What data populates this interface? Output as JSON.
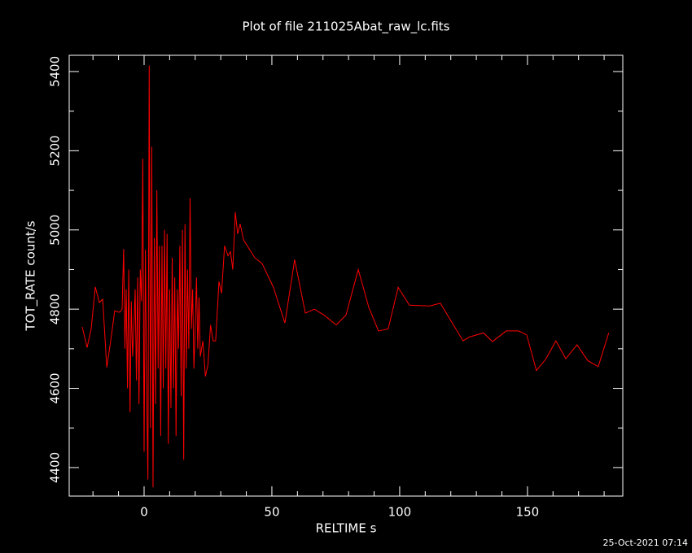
{
  "chart_data": {
    "type": "line",
    "title": "Plot of file 211025Abat_raw_lc.fits",
    "x_label": "RELTIME  s",
    "y_label": "TOT_RATE  count/s",
    "footer": "25-Oct-2021 07:14",
    "color": "#ff0000",
    "x": [
      -24.2,
      -22.3,
      -20.7,
      -19.1,
      -17.5,
      -16.2,
      -14.6,
      -13.1,
      -11.5,
      -9.6,
      -8.6,
      -8.0,
      -7.5,
      -7,
      -6.5,
      -6,
      -5.5,
      -5,
      -4.5,
      -4,
      -3.5,
      -3,
      -2.5,
      -2,
      -1.5,
      -1,
      -0.5,
      0,
      0.5,
      1,
      1.5,
      2,
      2.5,
      3,
      3.5,
      4,
      4.5,
      5,
      5.5,
      6,
      6.5,
      7,
      7.5,
      8,
      8.5,
      9,
      9.5,
      10,
      10.5,
      11,
      11.5,
      12,
      12.5,
      13,
      13.5,
      14,
      14.5,
      15,
      15.5,
      16,
      16.5,
      17,
      17.5,
      18,
      18.5,
      19,
      19.5,
      20,
      20.5,
      21,
      21.5,
      22,
      23,
      24,
      25,
      26,
      27,
      28,
      29.3,
      30.3,
      31.5,
      32.8,
      33.8,
      34.7,
      35.7,
      36.6,
      37.6,
      38.9,
      43.3,
      46.2,
      50.6,
      55.1,
      58.9,
      63.1,
      66.6,
      70.4,
      75.2,
      79,
      83.8,
      87.9,
      91.7,
      95.5,
      99.4,
      103.8,
      111.8,
      115.9,
      124.8,
      127.4,
      132.8,
      136.3,
      141.7,
      146.5,
      149.7,
      153.5,
      157.3,
      161.1,
      165,
      169.4,
      173.6,
      177.7,
      181.8
    ],
    "values": [
      4755,
      4703,
      4750,
      4856,
      4817,
      4825,
      4653,
      4718,
      4796,
      4792,
      4800,
      4952,
      4700,
      4850,
      4600,
      4900,
      4540,
      4820,
      4680,
      4750,
      4850,
      4620,
      4880,
      4560,
      4900,
      4820,
      5180,
      4440,
      4950,
      4600,
      4370,
      5415,
      4500,
      5210,
      4350,
      4980,
      4560,
      5100,
      4650,
      4960,
      4480,
      4960,
      4600,
      5000,
      4650,
      4990,
      4460,
      4850,
      4550,
      4930,
      4600,
      4880,
      4480,
      4850,
      4700,
      4960,
      4580,
      5000,
      4420,
      5015,
      4650,
      4900,
      4700,
      5080,
      4750,
      4850,
      4650,
      4750,
      4880,
      4700,
      4830,
      4680,
      4720,
      4630,
      4660,
      4760,
      4720,
      4720,
      4870,
      4840,
      4960,
      4935,
      4945,
      4900,
      5045,
      4990,
      5015,
      4975,
      4930,
      4915,
      4855,
      4765,
      4925,
      4790,
      4800,
      4785,
      4760,
      4785,
      4900,
      4805,
      4745,
      4750,
      4855,
      4810,
      4808,
      4815,
      4720,
      4730,
      4740,
      4718,
      4745,
      4745,
      4735,
      4645,
      4675,
      4720,
      4675,
      4710,
      4670,
      4655,
      4740
    ],
    "xlim": [
      -29.3,
      187.3
    ],
    "ylim": [
      4328,
      5441
    ],
    "xticks": [
      0,
      50,
      100,
      150
    ],
    "yticks": [
      4400,
      4600,
      4800,
      5000,
      5200,
      5400
    ],
    "xminor_ticks": [
      -20,
      -10,
      10,
      20,
      30,
      40,
      60,
      70,
      80,
      90,
      110,
      120,
      130,
      140,
      160,
      170,
      180
    ],
    "yminor_ticks": [
      4500,
      4700,
      4900,
      5100,
      5300
    ]
  }
}
